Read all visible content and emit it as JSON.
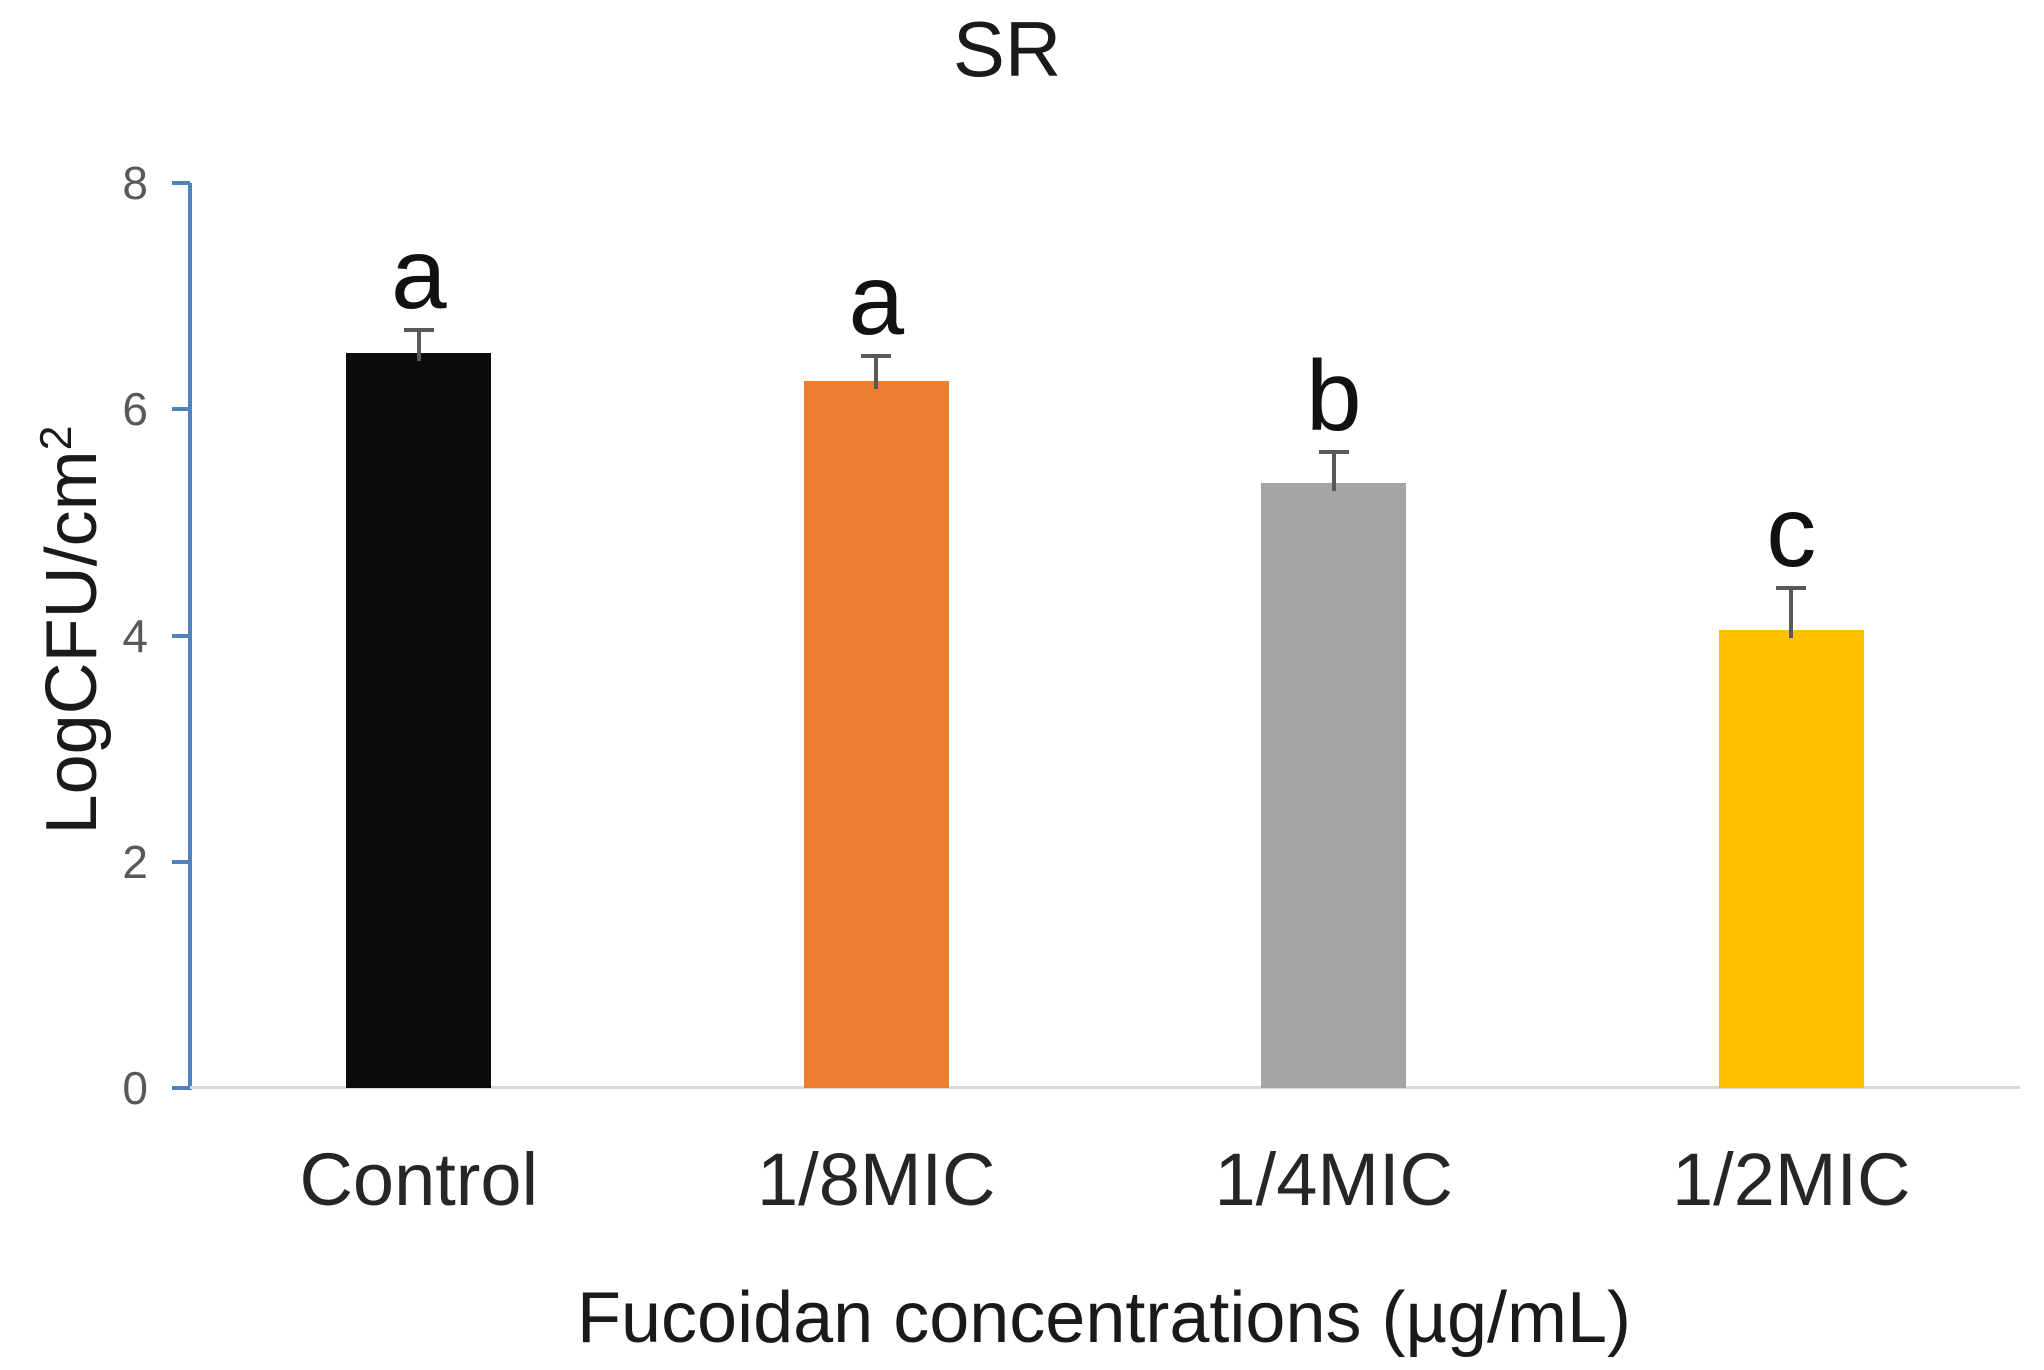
{
  "title": "SR",
  "axes": {
    "ylabel_base": "LogCFU/cm",
    "ylabel_sup": "2",
    "xlabel": "Fucoidan concentrations (µg/mL)"
  },
  "chart_data": {
    "type": "bar",
    "title": "SR",
    "categories": [
      "Control",
      "1/8MIC",
      "1/4MIC",
      "1/2MIC"
    ],
    "values": [
      6.5,
      6.25,
      5.35,
      4.05
    ],
    "errors_plus": [
      0.2,
      0.22,
      0.27,
      0.37
    ],
    "sig_letters": [
      "a",
      "a",
      "b",
      "c"
    ],
    "bar_colors": [
      "#0c0c0c",
      "#ed7d31",
      "#a5a5a5",
      "#ffc000"
    ],
    "xlabel": "Fucoidan concentrations (µg/mL)",
    "ylabel": "LogCFU/cm²",
    "ylim": [
      0,
      8
    ],
    "y_ticks": [
      0,
      2,
      4,
      6,
      8
    ],
    "grid": false,
    "legend": "none",
    "colors": {
      "axis_line": "#4f81bd",
      "baseline": "#d9d9d9",
      "error_bar": "#595959",
      "tick_label": "#595959",
      "text": "#262626"
    }
  }
}
